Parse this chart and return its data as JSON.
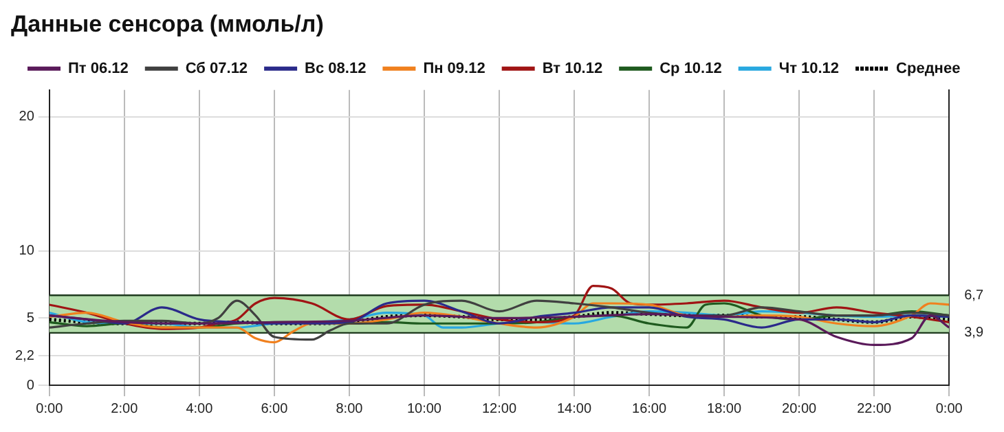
{
  "chart_data": {
    "type": "line",
    "title": "Данные сенсора (ммоль/л)",
    "xlim": [
      0,
      24
    ],
    "xticks": [
      {
        "value": 0,
        "label": "0:00"
      },
      {
        "value": 2,
        "label": "2:00"
      },
      {
        "value": 4,
        "label": "4:00"
      },
      {
        "value": 6,
        "label": "6:00"
      },
      {
        "value": 8,
        "label": "8:00"
      },
      {
        "value": 10,
        "label": "10:00"
      },
      {
        "value": 12,
        "label": "12:00"
      },
      {
        "value": 14,
        "label": "14:00"
      },
      {
        "value": 16,
        "label": "16:00"
      },
      {
        "value": 18,
        "label": "18:00"
      },
      {
        "value": 20,
        "label": "20:00"
      },
      {
        "value": 22,
        "label": "22:00"
      },
      {
        "value": 24,
        "label": "0:00"
      }
    ],
    "ylim": [
      0,
      22
    ],
    "yticks": [
      0,
      {
        "value": 2.2,
        "label": "2,2"
      },
      5,
      10,
      20
    ],
    "y2lim": [
      0,
      22
    ],
    "y2ticks": [
      {
        "value": 3.9,
        "label": "3,9"
      },
      {
        "value": 6.7,
        "label": "6,7"
      }
    ],
    "bands": [
      {
        "axis": "y",
        "from": 3.9,
        "to": 6.7,
        "color": "#b3dcab"
      }
    ],
    "grid": true,
    "legend": "top",
    "marker": "none",
    "series": [
      {
        "name": "Пт 06.12",
        "color": "#5a1a5a",
        "x": [
          0,
          2,
          4,
          6,
          8,
          10,
          12,
          14,
          16,
          18,
          20,
          21,
          22,
          23,
          23.5,
          24
        ],
        "values": [
          5.2,
          4.7,
          4.6,
          4.7,
          4.8,
          5.2,
          5.0,
          5.1,
          5.3,
          5.1,
          4.9,
          3.6,
          3.0,
          3.5,
          5.2,
          4.3
        ]
      },
      {
        "name": "Сб 07.12",
        "color": "#404040",
        "x": [
          0,
          1,
          2,
          3,
          4,
          4.5,
          5,
          5.5,
          6,
          7,
          7.5,
          8,
          9,
          10,
          11,
          12,
          13,
          14,
          15,
          16,
          17,
          18,
          19,
          20,
          21,
          22,
          23,
          24
        ],
        "values": [
          4.3,
          4.6,
          4.8,
          4.8,
          4.6,
          5.0,
          6.3,
          5.2,
          3.6,
          3.4,
          4.1,
          4.6,
          4.6,
          6.0,
          6.3,
          5.5,
          6.3,
          6.1,
          5.8,
          5.4,
          5.2,
          5.2,
          5.8,
          5.5,
          5.2,
          5.2,
          5.4,
          5.2
        ]
      },
      {
        "name": "Вс 08.12",
        "color": "#2a2a8a",
        "x": [
          0,
          1,
          2,
          3,
          4,
          5,
          6,
          7,
          8,
          9,
          10,
          11,
          12,
          13,
          14,
          15,
          16,
          17,
          18,
          19,
          20,
          21,
          22,
          23,
          24
        ],
        "values": [
          5.2,
          4.9,
          4.6,
          5.8,
          4.9,
          4.7,
          4.6,
          4.6,
          4.7,
          6.1,
          6.3,
          5.5,
          4.6,
          5.1,
          5.4,
          5.8,
          5.8,
          5.1,
          4.9,
          4.3,
          4.9,
          4.9,
          4.7,
          5.2,
          5.1
        ]
      },
      {
        "name": "Пн 09.12",
        "color": "#f0801e",
        "x": [
          0,
          1,
          2,
          3,
          4,
          5,
          5.5,
          6,
          6.5,
          7,
          8,
          9,
          10,
          11,
          12,
          13,
          14,
          14.5,
          15,
          16,
          17,
          18,
          19,
          20,
          21,
          22,
          23,
          23.5,
          24
        ],
        "values": [
          5.1,
          5.4,
          4.7,
          4.3,
          4.3,
          4.3,
          3.5,
          3.2,
          4.0,
          4.6,
          4.6,
          4.9,
          5.4,
          5.1,
          4.6,
          4.3,
          5.1,
          6.1,
          6.1,
          6.0,
          5.2,
          5.1,
          5.2,
          5.1,
          4.6,
          4.4,
          5.2,
          6.1,
          6.0
        ]
      },
      {
        "name": "Вт 10.12",
        "color": "#a01414",
        "x": [
          0,
          1,
          2,
          3,
          4,
          4.5,
          5,
          5.5,
          6,
          7,
          8,
          9,
          10,
          11,
          12,
          13,
          14,
          14.5,
          15,
          15.5,
          16,
          17,
          18,
          19,
          20,
          21,
          22,
          23,
          24
        ],
        "values": [
          6.0,
          5.4,
          4.6,
          4.2,
          4.3,
          4.6,
          4.9,
          6.1,
          6.5,
          6.1,
          4.9,
          5.9,
          6.0,
          5.5,
          4.9,
          4.7,
          5.2,
          7.4,
          7.2,
          6.1,
          6.0,
          6.1,
          6.3,
          5.8,
          5.4,
          5.8,
          5.4,
          5.1,
          4.7
        ]
      },
      {
        "name": "Ср 10.12",
        "color": "#1e5a1e",
        "x": [
          0,
          1,
          2,
          3,
          4,
          5,
          6,
          7,
          8,
          9,
          10,
          11,
          12,
          13,
          14,
          15,
          16,
          17,
          17.5,
          18,
          19,
          20,
          21,
          22,
          23,
          24
        ],
        "values": [
          4.7,
          4.4,
          4.6,
          4.3,
          4.3,
          4.6,
          4.7,
          4.7,
          4.6,
          4.7,
          4.6,
          4.6,
          4.6,
          4.7,
          5.1,
          5.2,
          4.6,
          4.3,
          6.0,
          6.1,
          5.2,
          4.9,
          5.2,
          5.2,
          5.5,
          5.2
        ]
      },
      {
        "name": "Чт 10.12",
        "color": "#28a8e0",
        "x": [
          0,
          1,
          2,
          3,
          4,
          5,
          6,
          7,
          8,
          9,
          10,
          10.5,
          11,
          12,
          13,
          14,
          15,
          16,
          17,
          18,
          19,
          20,
          21,
          22,
          23,
          24
        ],
        "values": [
          5.4,
          4.7,
          4.6,
          4.6,
          4.3,
          4.3,
          4.6,
          4.7,
          4.9,
          5.4,
          5.2,
          4.3,
          4.3,
          4.6,
          4.7,
          4.6,
          5.1,
          5.5,
          5.4,
          5.2,
          5.5,
          5.4,
          5.2,
          5.1,
          5.2,
          5.1
        ]
      },
      {
        "name": "Среднее",
        "color": "#000000",
        "line_style": "dotted",
        "x": [
          0,
          1,
          2,
          3,
          4,
          5,
          6,
          7,
          8,
          9,
          10,
          11,
          12,
          13,
          14,
          15,
          16,
          17,
          18,
          19,
          20,
          21,
          22,
          23,
          24
        ],
        "values": [
          4.9,
          4.7,
          4.6,
          4.6,
          4.6,
          4.7,
          4.6,
          4.6,
          4.7,
          5.1,
          5.2,
          5.1,
          4.9,
          4.9,
          5.1,
          5.4,
          5.3,
          5.2,
          5.2,
          5.1,
          5.1,
          4.9,
          4.7,
          5.1,
          4.9
        ]
      }
    ]
  }
}
